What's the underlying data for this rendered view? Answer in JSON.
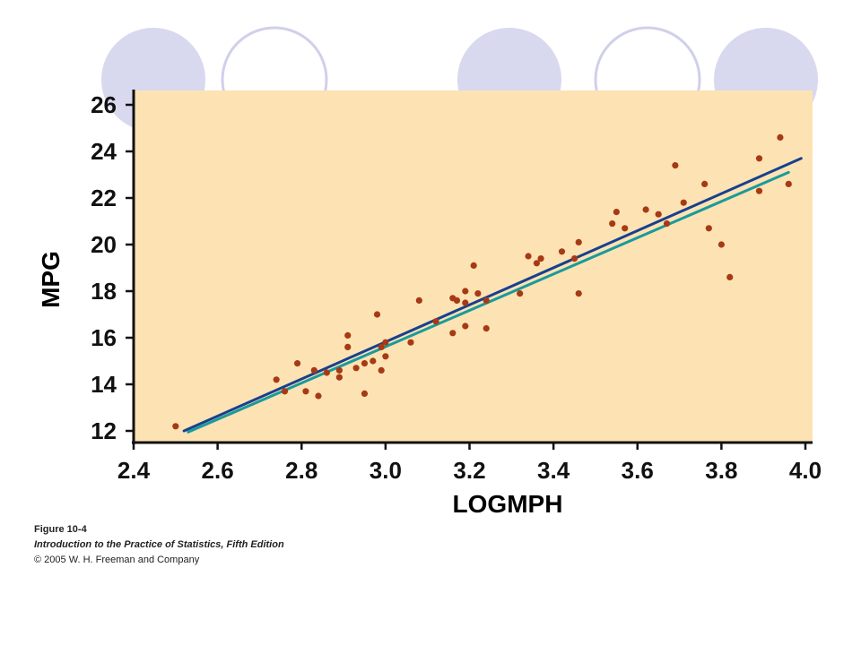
{
  "colors": {
    "background": "#ffffff",
    "plot_area": "#fde3b3",
    "axis": "#111111",
    "points": "#a63a14",
    "ls_line": "#17408f",
    "resistant_line": "#1a9a9c",
    "deco_fill": "#d8d8ef",
    "deco_stroke": "#d0d0ea"
  },
  "decor": {
    "circles": [
      {
        "style": "filled"
      },
      {
        "style": "outline"
      },
      {
        "style": "filled"
      },
      {
        "style": "outline"
      },
      {
        "style": "filled"
      }
    ]
  },
  "chart_data": {
    "type": "scatter",
    "title": "",
    "xlabel": "LOGMPH",
    "ylabel": "MPG",
    "xlim": [
      2.4,
      4.0
    ],
    "ylim": [
      12,
      26
    ],
    "x_ticks": [
      "2.4",
      "2.6",
      "2.8",
      "3.0",
      "3.2",
      "3.4",
      "3.6",
      "3.8",
      "4.0"
    ],
    "y_ticks": [
      "12",
      "14",
      "16",
      "18",
      "20",
      "22",
      "24",
      "26"
    ],
    "grid": false,
    "legend": "none",
    "points": [
      {
        "x": 2.5,
        "y": 12.2
      },
      {
        "x": 2.74,
        "y": 14.2
      },
      {
        "x": 2.76,
        "y": 13.7
      },
      {
        "x": 2.79,
        "y": 14.9
      },
      {
        "x": 2.81,
        "y": 13.7
      },
      {
        "x": 2.83,
        "y": 14.6
      },
      {
        "x": 2.84,
        "y": 13.5
      },
      {
        "x": 2.86,
        "y": 14.5
      },
      {
        "x": 2.89,
        "y": 14.3
      },
      {
        "x": 2.89,
        "y": 14.6
      },
      {
        "x": 2.91,
        "y": 16.1
      },
      {
        "x": 2.91,
        "y": 15.6
      },
      {
        "x": 2.93,
        "y": 14.7
      },
      {
        "x": 2.95,
        "y": 13.6
      },
      {
        "x": 2.95,
        "y": 14.9
      },
      {
        "x": 2.97,
        "y": 15.0
      },
      {
        "x": 2.98,
        "y": 17.0
      },
      {
        "x": 2.99,
        "y": 15.6
      },
      {
        "x": 2.99,
        "y": 14.6
      },
      {
        "x": 3.0,
        "y": 15.8
      },
      {
        "x": 3.0,
        "y": 15.2
      },
      {
        "x": 3.06,
        "y": 15.8
      },
      {
        "x": 3.08,
        "y": 17.6
      },
      {
        "x": 3.12,
        "y": 16.7
      },
      {
        "x": 3.16,
        "y": 17.7
      },
      {
        "x": 3.16,
        "y": 16.2
      },
      {
        "x": 3.17,
        "y": 17.6
      },
      {
        "x": 3.19,
        "y": 18.0
      },
      {
        "x": 3.19,
        "y": 17.5
      },
      {
        "x": 3.19,
        "y": 16.5
      },
      {
        "x": 3.21,
        "y": 19.1
      },
      {
        "x": 3.22,
        "y": 17.9
      },
      {
        "x": 3.24,
        "y": 17.6
      },
      {
        "x": 3.24,
        "y": 16.4
      },
      {
        "x": 3.32,
        "y": 17.9
      },
      {
        "x": 3.34,
        "y": 19.5
      },
      {
        "x": 3.36,
        "y": 19.2
      },
      {
        "x": 3.37,
        "y": 19.4
      },
      {
        "x": 3.42,
        "y": 19.7
      },
      {
        "x": 3.45,
        "y": 19.4
      },
      {
        "x": 3.46,
        "y": 20.1
      },
      {
        "x": 3.46,
        "y": 17.9
      },
      {
        "x": 3.54,
        "y": 20.9
      },
      {
        "x": 3.55,
        "y": 21.4
      },
      {
        "x": 3.57,
        "y": 20.7
      },
      {
        "x": 3.62,
        "y": 21.5
      },
      {
        "x": 3.65,
        "y": 21.3
      },
      {
        "x": 3.67,
        "y": 20.9
      },
      {
        "x": 3.69,
        "y": 23.4
      },
      {
        "x": 3.71,
        "y": 21.8
      },
      {
        "x": 3.76,
        "y": 22.6
      },
      {
        "x": 3.77,
        "y": 20.7
      },
      {
        "x": 3.8,
        "y": 20.0
      },
      {
        "x": 3.82,
        "y": 18.6
      },
      {
        "x": 3.89,
        "y": 22.3
      },
      {
        "x": 3.89,
        "y": 23.7
      },
      {
        "x": 3.94,
        "y": 24.6
      },
      {
        "x": 3.96,
        "y": 22.6
      }
    ],
    "lines": [
      {
        "style": "least-squares",
        "x": [
          2.52,
          3.99
        ],
        "y": [
          12.0,
          23.7
        ]
      },
      {
        "style": "resistant",
        "x": [
          2.53,
          3.96
        ],
        "y": [
          11.95,
          23.1
        ]
      }
    ]
  },
  "caption": {
    "figure": "Figure 10-4",
    "book": "Introduction to the Practice of Statistics, Fifth Edition",
    "copyright": "© 2005 W. H. Freeman and Company"
  }
}
